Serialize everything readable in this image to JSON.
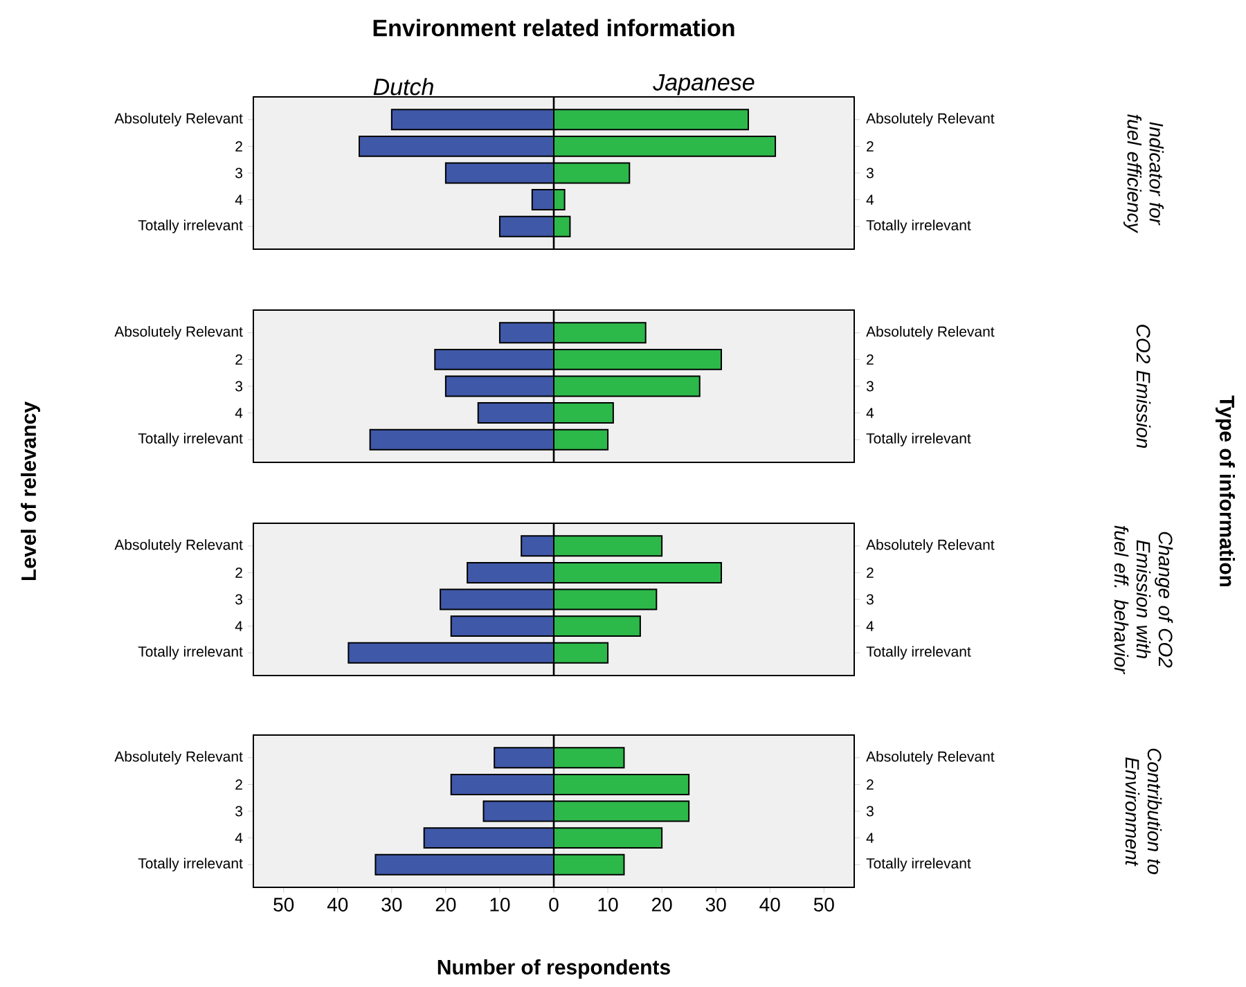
{
  "chart_data": [
    {
      "type": "bar",
      "orientation": "horizontal",
      "stacked": true,
      "title": "Environment related information",
      "annotations": [
        "Level of relevancy",
        "Type of information"
      ],
      "y2label": "Indicator for fuel efficiency",
      "tick_labels": "y",
      "categories": [
        "Absolutely Relevant",
        "2",
        "3",
        "4",
        "Totally irrelevant"
      ],
      "xlim": [
        -55.6,
        55.6
      ],
      "series": [
        {
          "name": "Dutch",
          "color": "#3f58a8",
          "values": [
            -30,
            -36,
            -20,
            -4,
            -10
          ]
        },
        {
          "name": "Japanese",
          "color": "#2db84a",
          "values": [
            36,
            41,
            14,
            2,
            3
          ]
        }
      ],
      "ref_lines": [
        {
          "axis": "x",
          "value": 0
        }
      ]
    },
    {
      "type": "bar",
      "orientation": "horizontal",
      "stacked": true,
      "y2label": "CO2 Emission",
      "tick_labels": "y",
      "categories": [
        "Absolutely Relevant",
        "2",
        "3",
        "4",
        "Totally irrelevant"
      ],
      "xlim": [
        -55.6,
        55.6
      ],
      "series": [
        {
          "color": "#3f58a8",
          "values": [
            -10,
            -22,
            -20,
            -14,
            -34
          ]
        },
        {
          "color": "#2db84a",
          "values": [
            17,
            31,
            27,
            11,
            10
          ]
        }
      ],
      "ref_lines": [
        {
          "axis": "x",
          "value": 0
        }
      ]
    },
    {
      "type": "bar",
      "orientation": "horizontal",
      "stacked": true,
      "y2label": "Change of CO2 Emission with fuel eff. behavior",
      "tick_labels": "y",
      "categories": [
        "Absolutely Relevant",
        "2",
        "3",
        "4",
        "Totally irrelevant"
      ],
      "xlim": [
        -55.6,
        55.6
      ],
      "series": [
        {
          "color": "#3f58a8",
          "values": [
            -6,
            -16,
            -21,
            -19,
            -38
          ]
        },
        {
          "color": "#2db84a",
          "values": [
            20,
            31,
            19,
            16,
            10
          ]
        }
      ],
      "ref_lines": [
        {
          "axis": "x",
          "value": 0
        }
      ]
    },
    {
      "type": "bar",
      "orientation": "horizontal",
      "stacked": true,
      "y2label": "Contribution to Environment",
      "xlabel": "Number of respondents",
      "categories": [
        "Absolutely Relevant",
        "2",
        "3",
        "4",
        "Totally irrelevant"
      ],
      "xlim": [
        -55.6,
        55.6
      ],
      "xticks": [
        {
          "value": -50,
          "label": "50"
        },
        {
          "value": -40,
          "label": "40"
        },
        {
          "value": -30,
          "label": "30"
        },
        {
          "value": -20,
          "label": "20"
        },
        {
          "value": -10,
          "label": "10"
        },
        0,
        10,
        20,
        30,
        40,
        50
      ],
      "series": [
        {
          "color": "#3f58a8",
          "values": [
            -11,
            -19,
            -13,
            -24,
            -33
          ]
        },
        {
          "color": "#2db84a",
          "values": [
            13,
            25,
            25,
            20,
            13
          ]
        }
      ],
      "ref_lines": [
        {
          "axis": "x",
          "value": 0
        }
      ]
    }
  ]
}
